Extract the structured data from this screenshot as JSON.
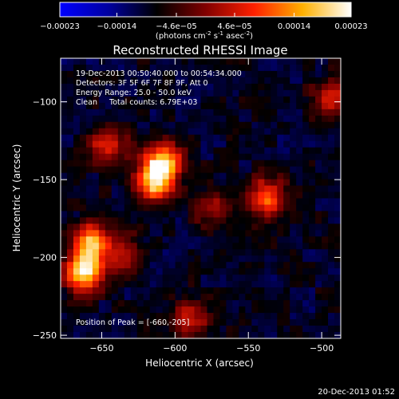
{
  "chart_data": {
    "type": "heatmap",
    "title": "Reconstructed RHESSI Image",
    "xlabel": "Heliocentric X (arcsec)",
    "ylabel": "Heliocentric Y (arcsec)",
    "xlim": [
      -678,
      -487
    ],
    "ylim": [
      -252,
      -72
    ],
    "x_ticks": [
      -650,
      -600,
      -550,
      -500
    ],
    "y_ticks": [
      -250,
      -200,
      -150,
      -100
    ],
    "x_tick_labels": [
      "-650",
      "-600",
      "-550",
      "-500"
    ],
    "y_tick_labels": [
      "-250",
      "-200",
      "-150",
      "-100"
    ],
    "grid": false,
    "colorbar": {
      "position": "top",
      "range": [
        -0.00023,
        0.00023
      ],
      "ticks": [
        -0.00023,
        -0.00014,
        -4.6e-05,
        4.6e-05,
        0.00014,
        0.00023
      ],
      "tick_labels": [
        "-0.00023",
        "-0.00014",
        "-4.6e-05",
        "4.6e-05",
        "0.00014",
        "0.00023"
      ],
      "unit_label": "(photons cm-2 s-1 asec-2)",
      "colormap_stops": [
        "#0000ff",
        "#0000a0",
        "#000000",
        "#800000",
        "#ff2000",
        "#ffb000",
        "#ffffff"
      ]
    },
    "annotations": [
      "19-Dec-2013 00:50:40.000 to 00:54:34.000",
      "Detectors: 3F 5F 6F 7F 8F 9F, Att 0",
      "Energy Range: 25.0 - 50.0 keV",
      "Clean     Total counts: 6.79E+03",
      "Position of Peak = [-660,-205]"
    ],
    "sources": [
      {
        "x": -662,
        "y": -210,
        "intensity": 1.0
      },
      {
        "x": -657,
        "y": -190,
        "intensity": 0.85
      },
      {
        "x": -608,
        "y": -140,
        "intensity": 0.95
      },
      {
        "x": -615,
        "y": -152,
        "intensity": 0.8
      },
      {
        "x": -646,
        "y": -128,
        "intensity": 0.6
      },
      {
        "x": -538,
        "y": -162,
        "intensity": 0.7
      },
      {
        "x": -492,
        "y": -98,
        "intensity": 0.55
      },
      {
        "x": -590,
        "y": -240,
        "intensity": 0.5
      },
      {
        "x": -636,
        "y": -198,
        "intensity": 0.45
      },
      {
        "x": -575,
        "y": -168,
        "intensity": 0.4
      }
    ]
  },
  "footer": {
    "timestamp": "20-Dec-2013 01:52"
  }
}
